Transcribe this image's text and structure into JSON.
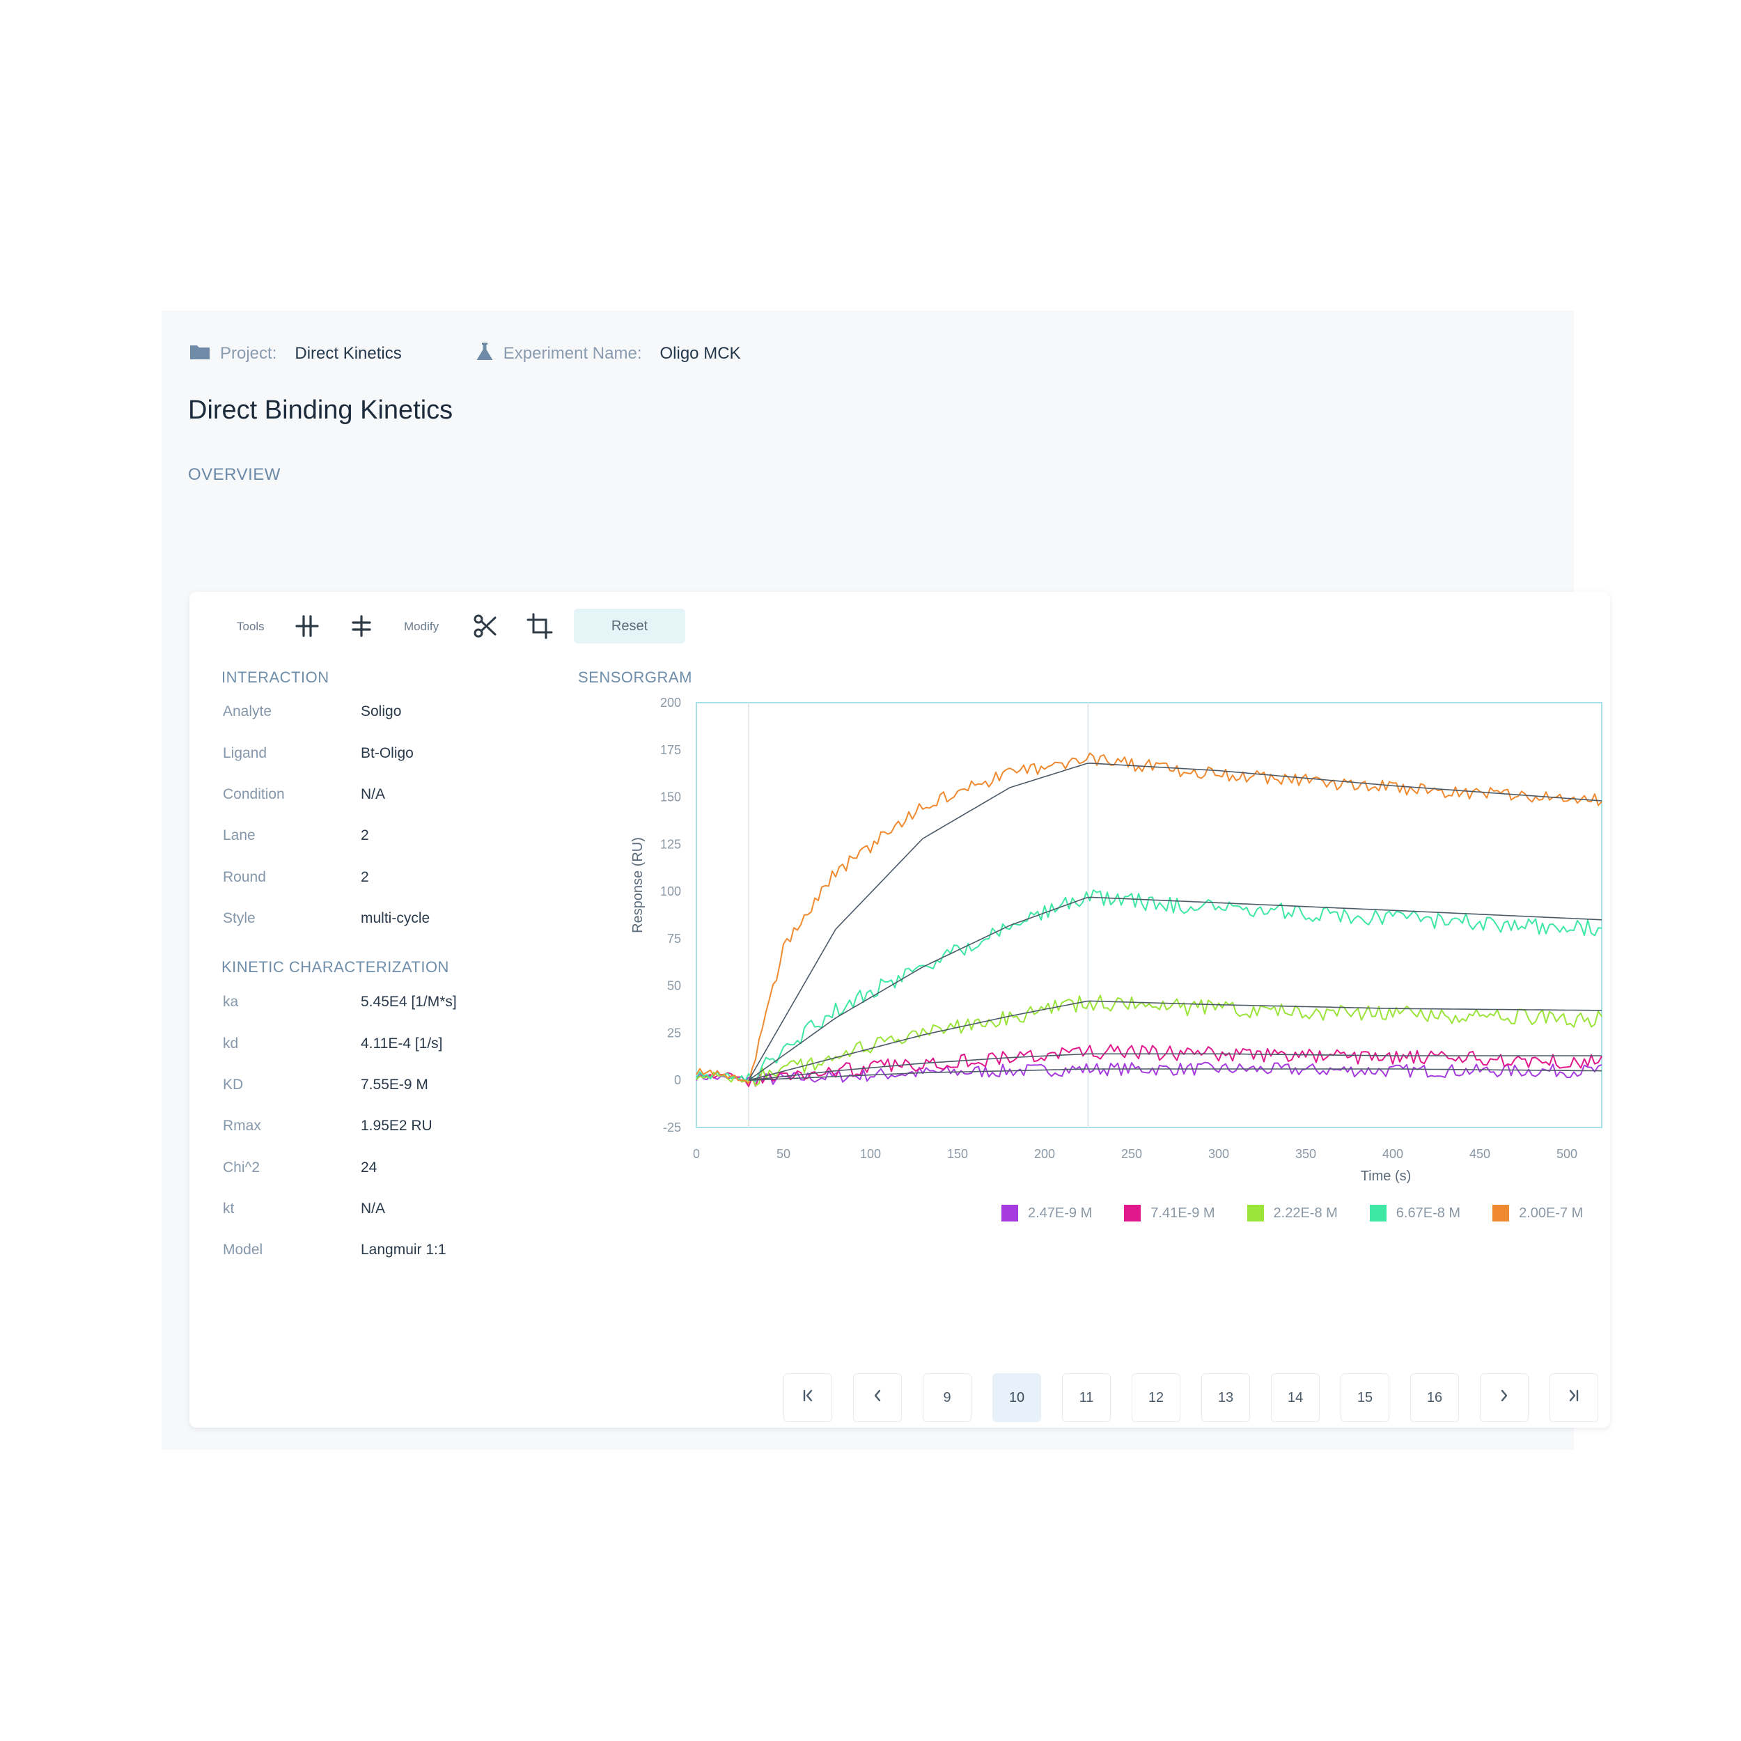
{
  "header": {
    "project_label": "Project:",
    "project_value": "Direct Kinetics",
    "experiment_label": "Experiment Name:",
    "experiment_value": "Oligo MCK",
    "title": "Direct Binding Kinetics",
    "tab": "OVERVIEW"
  },
  "toolbar": {
    "tools_label": "Tools",
    "modify_label": "Modify",
    "reset_label": "Reset",
    "icons": [
      "vertical-markers-icon",
      "horizontal-marker-icon",
      "scissors-icon",
      "crop-icon"
    ]
  },
  "interaction": {
    "title": "INTERACTION",
    "rows": [
      {
        "label": "Analyte",
        "value": "Soligo"
      },
      {
        "label": "Ligand",
        "value": "Bt-Oligo"
      },
      {
        "label": "Condition",
        "value": "N/A"
      },
      {
        "label": "Lane",
        "value": "2"
      },
      {
        "label": "Round",
        "value": "2"
      },
      {
        "label": "Style",
        "value": "multi-cycle"
      }
    ]
  },
  "kinetics": {
    "title": "KINETIC CHARACTERIZATION",
    "rows": [
      {
        "label": "ka",
        "value": "5.45E4 [1/M*s]"
      },
      {
        "label": "kd",
        "value": "4.11E-4 [1/s]"
      },
      {
        "label": "KD",
        "value": "7.55E-9 M"
      },
      {
        "label": "Rmax",
        "value": "1.95E2 RU"
      },
      {
        "label": "Chi^2",
        "value": "24"
      },
      {
        "label": "kt",
        "value": "N/A"
      },
      {
        "label": "Model",
        "value": "Langmuir 1:1"
      }
    ]
  },
  "chart_data": {
    "title": "SENSORGRAM",
    "type": "line",
    "xlabel": "Time (s)",
    "ylabel": "Response (RU)",
    "xlim": [
      0,
      520
    ],
    "ylim": [
      -25,
      200
    ],
    "xticks": [
      0,
      50,
      100,
      150,
      200,
      250,
      300,
      350,
      400,
      450,
      500
    ],
    "yticks": [
      -25,
      0,
      25,
      50,
      75,
      100,
      125,
      150,
      175,
      200
    ],
    "vlines": [
      30,
      225
    ],
    "grid": false,
    "legend_position": "bottom",
    "series": [
      {
        "name": "2.47E-9 M",
        "color": "#a63ce0",
        "x": [
          0,
          30,
          80,
          130,
          180,
          225,
          300,
          400,
          520
        ],
        "y": [
          2,
          0,
          2,
          4,
          5,
          6,
          6,
          5,
          5
        ]
      },
      {
        "name": "7.41E-9 M",
        "color": "#e0188c",
        "x": [
          0,
          30,
          80,
          130,
          180,
          225,
          300,
          400,
          520
        ],
        "y": [
          4,
          0,
          5,
          9,
          12,
          15,
          14,
          12,
          10
        ]
      },
      {
        "name": "2.22E-8 M",
        "color": "#9be43a",
        "x": [
          0,
          30,
          80,
          130,
          180,
          225,
          300,
          400,
          520
        ],
        "y": [
          3,
          0,
          13,
          24,
          34,
          41,
          38,
          35,
          32
        ]
      },
      {
        "name": "6.67E-8 M",
        "color": "#3ee8a4",
        "x": [
          0,
          30,
          80,
          130,
          180,
          225,
          300,
          400,
          520
        ],
        "y": [
          4,
          0,
          38,
          60,
          82,
          97,
          91,
          86,
          80
        ]
      },
      {
        "name": "2.00E-7 M",
        "color": "#f08a30",
        "x": [
          0,
          30,
          50,
          80,
          130,
          180,
          225,
          300,
          400,
          520
        ],
        "y": [
          5,
          0,
          70,
          110,
          145,
          163,
          170,
          162,
          155,
          148
        ]
      }
    ],
    "fits": [
      {
        "x": [
          30,
          80,
          130,
          180,
          225,
          300,
          400,
          520
        ],
        "y": [
          0,
          2,
          4,
          5,
          6,
          6,
          6,
          5
        ]
      },
      {
        "x": [
          30,
          80,
          130,
          180,
          225,
          300,
          400,
          520
        ],
        "y": [
          0,
          5,
          9,
          12,
          14,
          14,
          13,
          13
        ]
      },
      {
        "x": [
          30,
          80,
          130,
          180,
          225,
          300,
          400,
          520
        ],
        "y": [
          0,
          12,
          24,
          34,
          42,
          40,
          38,
          37
        ]
      },
      {
        "x": [
          30,
          80,
          130,
          180,
          225,
          300,
          400,
          520
        ],
        "y": [
          0,
          33,
          60,
          82,
          97,
          94,
          90,
          85
        ]
      },
      {
        "x": [
          30,
          80,
          130,
          180,
          225,
          300,
          400,
          520
        ],
        "y": [
          0,
          80,
          128,
          155,
          168,
          164,
          156,
          148
        ]
      }
    ]
  },
  "pagination": {
    "first_icon": "first-page-icon",
    "prev_icon": "chevron-left-icon",
    "next_icon": "chevron-right-icon",
    "last_icon": "last-page-icon",
    "pages": [
      "9",
      "10",
      "11",
      "12",
      "13",
      "14",
      "15",
      "16"
    ],
    "current": "10"
  },
  "colors": {
    "accent": "#e4f4f7",
    "plot_border": "#a8e0e8",
    "fit_line": "#4c5a68"
  }
}
